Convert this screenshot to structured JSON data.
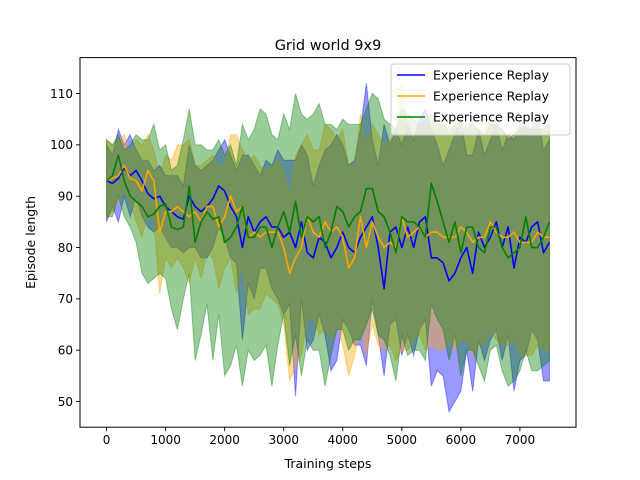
{
  "chart_data": {
    "type": "line",
    "title": "Grid world 9x9",
    "xlabel": "Training steps",
    "ylabel": "Episode length",
    "xlim": [
      -450,
      7950
    ],
    "ylim": [
      45,
      117
    ],
    "xticks": [
      0,
      1000,
      2000,
      3000,
      4000,
      5000,
      6000,
      7000
    ],
    "yticks": [
      50,
      60,
      70,
      80,
      90,
      100,
      110
    ],
    "legend_position": "top-right",
    "grid": false,
    "x": [
      0,
      100,
      200,
      300,
      400,
      500,
      600,
      700,
      800,
      900,
      1000,
      1100,
      1200,
      1300,
      1400,
      1500,
      1600,
      1700,
      1800,
      1900,
      2000,
      2100,
      2200,
      2300,
      2400,
      2500,
      2600,
      2700,
      2800,
      2900,
      3000,
      3100,
      3200,
      3300,
      3400,
      3500,
      3600,
      3700,
      3800,
      3900,
      4000,
      4100,
      4200,
      4300,
      4400,
      4500,
      4600,
      4700,
      4800,
      4900,
      5000,
      5100,
      5200,
      5300,
      5400,
      5500,
      5600,
      5700,
      5800,
      5900,
      6000,
      6100,
      6200,
      6300,
      6400,
      6500,
      6600,
      6700,
      6800,
      6900,
      7000,
      7100,
      7200,
      7300,
      7400,
      7500
    ],
    "series": [
      {
        "name": "Experience Replay",
        "color": "#0000ff",
        "mean": [
          93,
          92.5,
          93.5,
          95.5,
          94,
          95,
          93,
          90.5,
          89.5,
          90,
          88,
          87,
          86,
          85.5,
          90,
          88,
          87,
          88,
          89.5,
          92,
          91,
          88,
          86,
          80,
          86,
          83,
          85,
          86,
          84,
          84,
          82,
          83,
          80,
          85,
          79,
          78,
          82,
          81,
          78,
          80,
          83,
          80,
          79,
          82,
          84,
          86,
          80,
          72,
          83,
          84,
          80,
          84,
          80,
          85,
          86,
          78,
          78,
          77,
          73.5,
          75,
          78,
          80,
          75,
          83,
          80,
          82,
          85,
          80,
          84,
          76,
          82,
          81,
          84,
          85,
          79,
          81
        ],
        "upper": [
          100,
          98,
          103,
          100,
          102,
          99,
          97,
          97,
          95,
          96,
          94,
          94,
          94,
          92,
          100,
          96,
          95,
          96,
          97,
          99,
          101,
          98,
          95,
          98,
          98,
          96,
          94,
          97,
          96,
          99,
          97,
          97,
          97,
          100,
          98,
          92,
          96,
          99,
          100,
          102,
          100,
          96,
          97,
          103,
          112,
          101,
          96,
          104,
          100,
          103,
          100,
          104,
          101,
          105,
          107,
          103,
          100,
          96,
          99,
          102,
          105,
          98,
          98,
          103,
          98,
          101,
          104,
          99,
          102,
          101,
          104,
          103,
          103,
          106,
          99,
          101
        ],
        "lower": [
          85,
          88,
          85,
          90,
          86,
          90,
          86,
          84,
          83,
          84,
          82,
          80,
          80,
          79,
          80,
          80,
          78,
          78,
          80,
          84,
          82,
          78,
          77,
          62,
          73,
          70,
          76,
          76,
          72,
          70,
          67,
          69,
          51,
          70,
          60,
          62,
          67,
          63,
          56,
          58,
          66,
          64,
          61,
          61,
          57,
          70,
          63,
          55,
          65,
          66,
          59,
          63,
          59,
          64,
          66,
          53,
          56,
          55,
          48,
          50,
          52,
          60,
          52,
          62,
          58,
          62,
          64,
          58,
          63,
          52,
          58,
          59,
          64,
          62,
          54,
          54
        ]
      },
      {
        "name": "Experience Replay",
        "color": "#ffa500",
        "mean": [
          93,
          93.5,
          94,
          96,
          93.5,
          93,
          91,
          95,
          93,
          83,
          87,
          87,
          88,
          87,
          86,
          87,
          85,
          88,
          88,
          84,
          86,
          90,
          87,
          88,
          82,
          83,
          82,
          83,
          83,
          83,
          80,
          75,
          78,
          80,
          86,
          83,
          82,
          85,
          83,
          84,
          82,
          76,
          78,
          86,
          80,
          85,
          82,
          80,
          81,
          80,
          86,
          82,
          83,
          84,
          82,
          83,
          83,
          82,
          82,
          82,
          84,
          83,
          81,
          82,
          82,
          85,
          83,
          82,
          82,
          83,
          81,
          81,
          81,
          83,
          82,
          82
        ],
        "upper": [
          101,
          100,
          101,
          102,
          98,
          101,
          100,
          102,
          99,
          94,
          98,
          97,
          100,
          100,
          101,
          96,
          96,
          97,
          98,
          96,
          96,
          102,
          102,
          99,
          97,
          98,
          96,
          95,
          96,
          97,
          95,
          90,
          98,
          100,
          102,
          99,
          99,
          104,
          103,
          101,
          103,
          96,
          96,
          106,
          100,
          104,
          102,
          100,
          101,
          102,
          112,
          103,
          102,
          104,
          104,
          104,
          105,
          104,
          102,
          104,
          105,
          103,
          104,
          103,
          103,
          105,
          104,
          103,
          102,
          103,
          104,
          103,
          103,
          104,
          104,
          104
        ],
        "lower": [
          86,
          87,
          89,
          91,
          89,
          85,
          82,
          87,
          85,
          71,
          78,
          76,
          78,
          76,
          73,
          78,
          74,
          79,
          78,
          72,
          76,
          78,
          71,
          77,
          67,
          68,
          68,
          71,
          70,
          69,
          65,
          54,
          57,
          59,
          66,
          66,
          63,
          64,
          62,
          65,
          61,
          55,
          59,
          64,
          59,
          65,
          61,
          60,
          61,
          58,
          60,
          60,
          62,
          63,
          60,
          61,
          60,
          60,
          62,
          60,
          62,
          62,
          59,
          61,
          61,
          64,
          62,
          61,
          61,
          62,
          59,
          59,
          59,
          61,
          60,
          60
        ]
      },
      {
        "name": "Experience Replay",
        "color": "#008000",
        "mean": [
          93,
          94,
          98,
          93,
          90,
          89,
          88,
          86,
          86.5,
          88,
          88.5,
          84,
          83.5,
          84,
          92,
          81,
          85,
          87,
          85.5,
          86,
          81,
          82,
          84,
          88,
          82,
          82,
          84,
          84,
          80,
          84,
          87,
          83,
          89,
          82,
          86,
          85,
          86,
          80,
          83,
          88,
          87,
          84,
          86,
          87,
          91.5,
          91.5,
          87,
          86,
          83,
          79,
          86,
          85,
          85,
          84,
          82,
          92.5,
          89,
          85,
          81,
          85,
          79,
          84,
          84,
          80,
          79,
          84,
          84,
          80,
          78,
          79,
          80,
          86,
          80,
          80,
          82,
          85
        ],
        "upper": [
          101,
          100,
          102,
          99,
          100,
          102,
          101,
          101,
          104,
          99,
          100,
          95,
          96,
          101,
          107,
          100,
          100,
          99,
          99,
          101,
          98,
          100,
          96,
          104,
          101,
          103,
          107,
          106,
          102,
          101,
          106,
          103,
          110,
          106,
          105,
          106,
          108,
          104,
          104,
          103,
          105,
          104,
          104,
          104,
          107,
          110,
          109,
          105,
          104,
          103,
          107,
          106,
          105,
          104,
          105,
          106,
          104,
          104,
          103,
          104,
          102,
          104,
          104,
          103,
          102,
          104,
          104,
          103,
          101,
          102,
          103,
          104,
          103,
          103,
          103,
          104
        ],
        "lower": [
          86,
          86,
          90,
          86,
          84,
          81,
          75,
          73,
          74,
          75,
          74,
          68,
          64,
          70,
          75,
          58,
          63,
          69,
          58,
          67,
          55,
          57,
          61,
          53,
          60,
          58,
          59,
          61,
          53,
          61,
          67,
          57,
          63,
          55,
          62,
          60,
          60,
          53,
          59,
          64,
          64,
          60,
          62,
          62,
          65,
          68,
          63,
          62,
          59,
          54,
          63,
          59,
          60,
          60,
          58,
          69,
          66,
          64,
          58,
          63,
          55,
          60,
          60,
          57,
          54,
          60,
          61,
          56,
          53,
          54,
          56,
          60,
          56,
          56,
          57,
          58
        ]
      }
    ]
  }
}
